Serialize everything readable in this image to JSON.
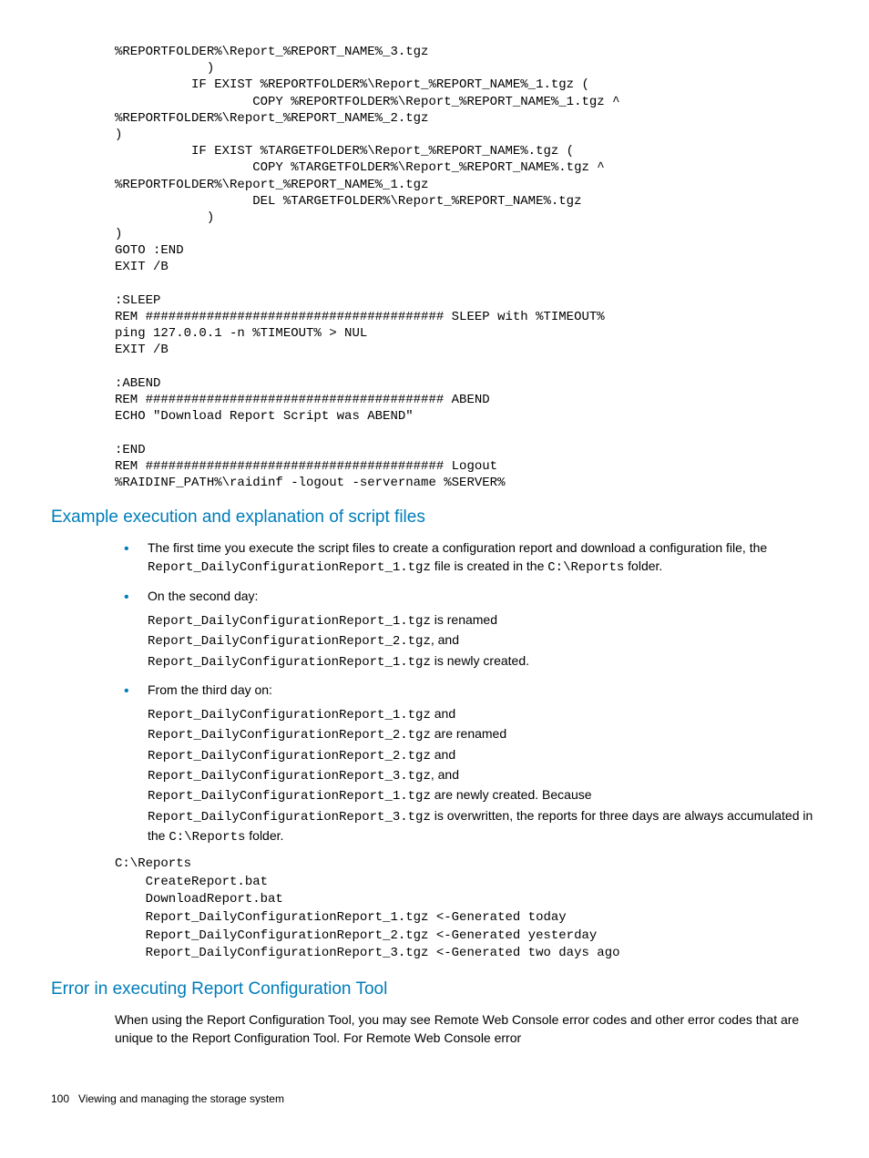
{
  "code_top": "%REPORTFOLDER%\\Report_%REPORT_NAME%_3.tgz\n            )\n          IF EXIST %REPORTFOLDER%\\Report_%REPORT_NAME%_1.tgz (\n                  COPY %REPORTFOLDER%\\Report_%REPORT_NAME%_1.tgz ^\n%REPORTFOLDER%\\Report_%REPORT_NAME%_2.tgz\n)\n          IF EXIST %TARGETFOLDER%\\Report_%REPORT_NAME%.tgz (\n                  COPY %TARGETFOLDER%\\Report_%REPORT_NAME%.tgz ^\n%REPORTFOLDER%\\Report_%REPORT_NAME%_1.tgz\n                  DEL %TARGETFOLDER%\\Report_%REPORT_NAME%.tgz\n            )\n)\nGOTO :END\nEXIT /B\n\n:SLEEP\nREM ####################################### SLEEP with %TIMEOUT%\nping 127.0.0.1 -n %TIMEOUT% > NUL\nEXIT /B\n\n:ABEND\nREM ####################################### ABEND\nECHO \"Download Report Script was ABEND\"\n\n:END\nREM ####################################### Logout\n%RAIDINF_PATH%\\raidinf -logout -servername %SERVER%",
  "h1": "Example execution and explanation of script files",
  "bullet1_a": "The first time you execute the script files to create a configuration report and download a configuration file, the ",
  "bullet1_b": "Report_DailyConfigurationReport_1.tgz",
  "bullet1_c": " file is created in the ",
  "bullet1_d": "C:\\Reports",
  "bullet1_e": " folder.",
  "bullet2": "On the second day:",
  "b2_l1a": "Report_DailyConfigurationReport_1.tgz",
  "b2_l1b": " is renamed",
  "b2_l2a": "Report_DailyConfigurationReport_2.tgz",
  "b2_l2b": ", and",
  "b2_l3a": "Report_DailyConfigurationReport_1.tgz",
  "b2_l3b": " is newly created.",
  "bullet3": "From the third day on:",
  "b3_l1a": "Report_DailyConfigurationReport_1.tgz",
  "b3_l1b": " and",
  "b3_l2a": "Report_DailyConfigurationReport_2.tgz",
  "b3_l2b": " are renamed",
  "b3_l3a": "Report_DailyConfigurationReport_2.tgz",
  "b3_l3b": " and",
  "b3_l4a": "Report_DailyConfigurationReport_3.tgz",
  "b3_l4b": ", and",
  "b3_l5a": "Report_DailyConfigurationReport_1.tgz",
  "b3_l5b": " are newly created. Because",
  "b3_l6a": "Report_DailyConfigurationReport_3.tgz",
  "b3_l6b": " is overwritten, the reports for three days are always accumulated in the ",
  "b3_l6c": "C:\\Reports",
  "b3_l6d": " folder.",
  "code_mid": "C:\\Reports\n    CreateReport.bat\n    DownloadReport.bat\n    Report_DailyConfigurationReport_1.tgz <-Generated today\n    Report_DailyConfigurationReport_2.tgz <-Generated yesterday\n    Report_DailyConfigurationReport_3.tgz <-Generated two days ago",
  "h2": "Error in executing Report Configuration Tool",
  "p2": "When using the Report Configuration Tool, you may see Remote Web Console error codes and other error codes that are unique to the Report Configuration Tool. For Remote Web Console error",
  "footer_page": "100",
  "footer_text": "Viewing and managing the storage system"
}
